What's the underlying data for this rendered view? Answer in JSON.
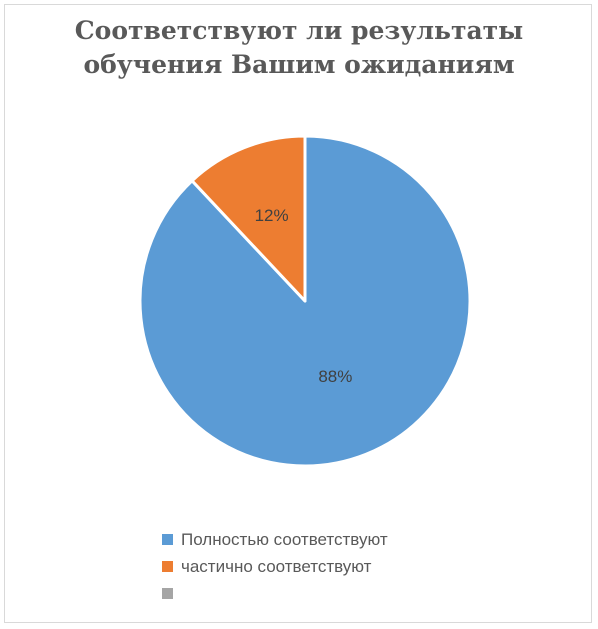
{
  "chart_data": {
    "type": "pie",
    "title_lines": [
      "Соответствуют ли результаты",
      "обучения Вашим ожиданиям"
    ],
    "slices": [
      {
        "label": "Полностью соответствуют",
        "value": 88,
        "data_label": "88%",
        "color": "#5b9bd5"
      },
      {
        "label": "частично соответствуют",
        "value": 12,
        "data_label": "12%",
        "color": "#ed7d31"
      },
      {
        "label": "",
        "value": 0,
        "data_label": "",
        "color": "#a5a5a5"
      }
    ],
    "legend_position": "bottom",
    "start_angle": "12 o'clock",
    "direction": "clockwise"
  }
}
